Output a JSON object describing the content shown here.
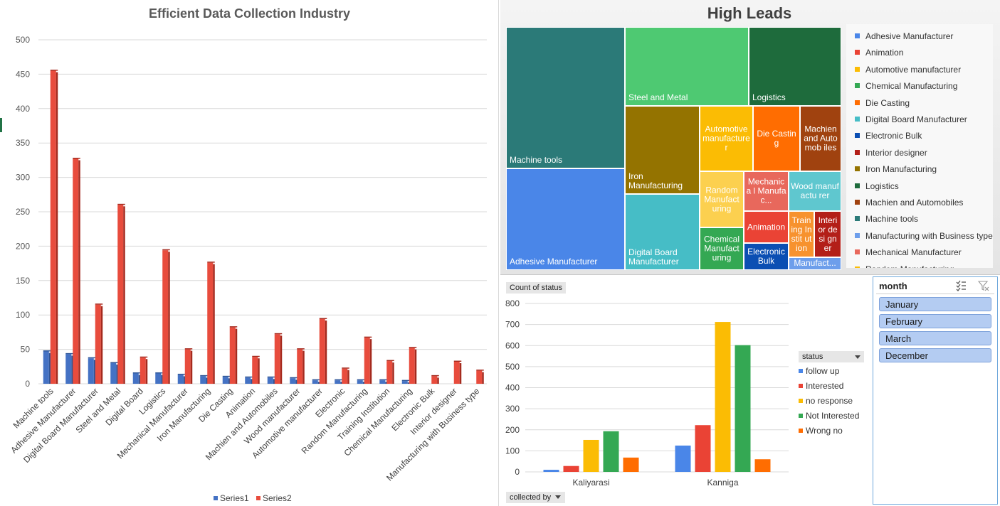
{
  "bar_chart": {
    "legend": [
      {
        "name": "Series1",
        "color": "#4472c4"
      },
      {
        "name": "Series2",
        "color": "#e84c3d"
      }
    ]
  },
  "treemap": {
    "title": "High Leads",
    "tiles": [
      {
        "label": "Machine tools",
        "color": "#2b7a78"
      },
      {
        "label": "Adhesive Manufacturer",
        "color": "#4a86e8"
      },
      {
        "label": "Steel and Metal",
        "color": "#4ec972"
      },
      {
        "label": "Logistics",
        "color": "#1e6b3c"
      },
      {
        "label": "Iron Manufacturing",
        "color": "#947300"
      },
      {
        "label": "Digital Board Manufacturer",
        "color": "#46bdc6"
      },
      {
        "label": "Automotive manufacture r",
        "color": "#fbbc04"
      },
      {
        "label": "Die Casting",
        "color": "#ff6d01"
      },
      {
        "label": "Machien and Automob iles",
        "color": "#a0420f"
      },
      {
        "label": "Random Manufact uring",
        "color": "#fcd04f"
      },
      {
        "label": "Mechanica l Manufac...",
        "color": "#e8685c"
      },
      {
        "label": "Wood manufactu rer",
        "color": "#5fc7cf"
      },
      {
        "label": "Chemical Manufact uring",
        "color": "#34a853"
      },
      {
        "label": "Animation",
        "color": "#ea4335"
      },
      {
        "label": "Train ing Instit ution",
        "color": "#f7922e"
      },
      {
        "label": "Interi or desi gner",
        "color": "#b31f18"
      },
      {
        "label": "Electronic Bulk",
        "color": "#0b4fb3"
      },
      {
        "label": "Manufact...",
        "color": "#6d9eeb"
      }
    ],
    "legend": [
      {
        "label": "Adhesive Manufacturer",
        "color": "#4a86e8"
      },
      {
        "label": "Animation",
        "color": "#ea4335"
      },
      {
        "label": "Automotive manufacturer",
        "color": "#fbbc04"
      },
      {
        "label": "Chemical Manufacturing",
        "color": "#34a853"
      },
      {
        "label": "Die Casting",
        "color": "#ff6d01"
      },
      {
        "label": "Digital Board Manufacturer",
        "color": "#46bdc6"
      },
      {
        "label": "Electronic Bulk",
        "color": "#0b4fb3"
      },
      {
        "label": "Interior designer",
        "color": "#b31f18"
      },
      {
        "label": "Iron Manufacturing",
        "color": "#947300"
      },
      {
        "label": "Logistics",
        "color": "#1e6b3c"
      },
      {
        "label": "Machien and Automobiles",
        "color": "#a0420f"
      },
      {
        "label": "Machine tools",
        "color": "#2b7a78"
      },
      {
        "label": "Manufacturing with Business type",
        "color": "#6d9eeb"
      },
      {
        "label": "Mechanical Manufacturer",
        "color": "#e8685c"
      },
      {
        "label": "Random Manufacturing",
        "color": "#fbbc04"
      }
    ]
  },
  "pivot": {
    "value_field": "Count of status",
    "axis_field": "collected by",
    "legend_field": "status",
    "series_colors": [
      "#4a86e8",
      "#ea4335",
      "#fbbc04",
      "#34a853",
      "#ff6d01"
    ]
  },
  "slicer": {
    "title": "month",
    "items": [
      "January",
      "February",
      "March",
      "December"
    ]
  },
  "chart_data": [
    {
      "type": "bar",
      "title": "Efficient Data Collection Industry",
      "categories": [
        "Machine tools",
        "Adhesive Manufacturer",
        "Digital Board Manufacturer",
        "Steel and Metal",
        "Digital Board",
        "Logistics",
        "Mechanical Manufacturer",
        "Iron Manufacturing",
        "Die Casting",
        "Animation",
        "Machien and Automobiles",
        "Wood manufacturer",
        "Automotive manufacturer",
        "Electronic",
        "Random Manufacturing",
        "Training Institution",
        "Chemical Manufacturing",
        "Electronic Bulk",
        "Interior designer",
        "Manufacturing with Business type"
      ],
      "series": [
        {
          "name": "Series1",
          "values": [
            47,
            43,
            37,
            30,
            15,
            15,
            13,
            11,
            10,
            9,
            9,
            8,
            5,
            5,
            5,
            5,
            4,
            0,
            0,
            0
          ]
        },
        {
          "name": "Series2",
          "values": [
            455,
            327,
            115,
            260,
            38,
            194,
            50,
            176,
            82,
            39,
            72,
            50,
            94,
            22,
            67,
            33,
            52,
            11,
            32,
            19
          ]
        }
      ],
      "ylim": [
        0,
        500
      ],
      "yticks": [
        0,
        50,
        100,
        150,
        200,
        250,
        300,
        350,
        400,
        450,
        500
      ],
      "grid": true,
      "legend_position": "bottom"
    },
    {
      "type": "bar",
      "categories": [
        "Kaliyarasi",
        "Kanniga"
      ],
      "series": [
        {
          "name": "follow up",
          "values": [
            10,
            125
          ]
        },
        {
          "name": "Interested",
          "values": [
            28,
            222
          ]
        },
        {
          "name": "no response",
          "values": [
            152,
            712
          ]
        },
        {
          "name": "Not Interested",
          "values": [
            193,
            602
          ]
        },
        {
          "name": "Wrong no",
          "values": [
            68,
            60
          ]
        }
      ],
      "ylim": [
        0,
        800
      ],
      "yticks": [
        0,
        100,
        200,
        300,
        400,
        500,
        600,
        700,
        800
      ],
      "grid": true,
      "legend_position": "right"
    }
  ]
}
